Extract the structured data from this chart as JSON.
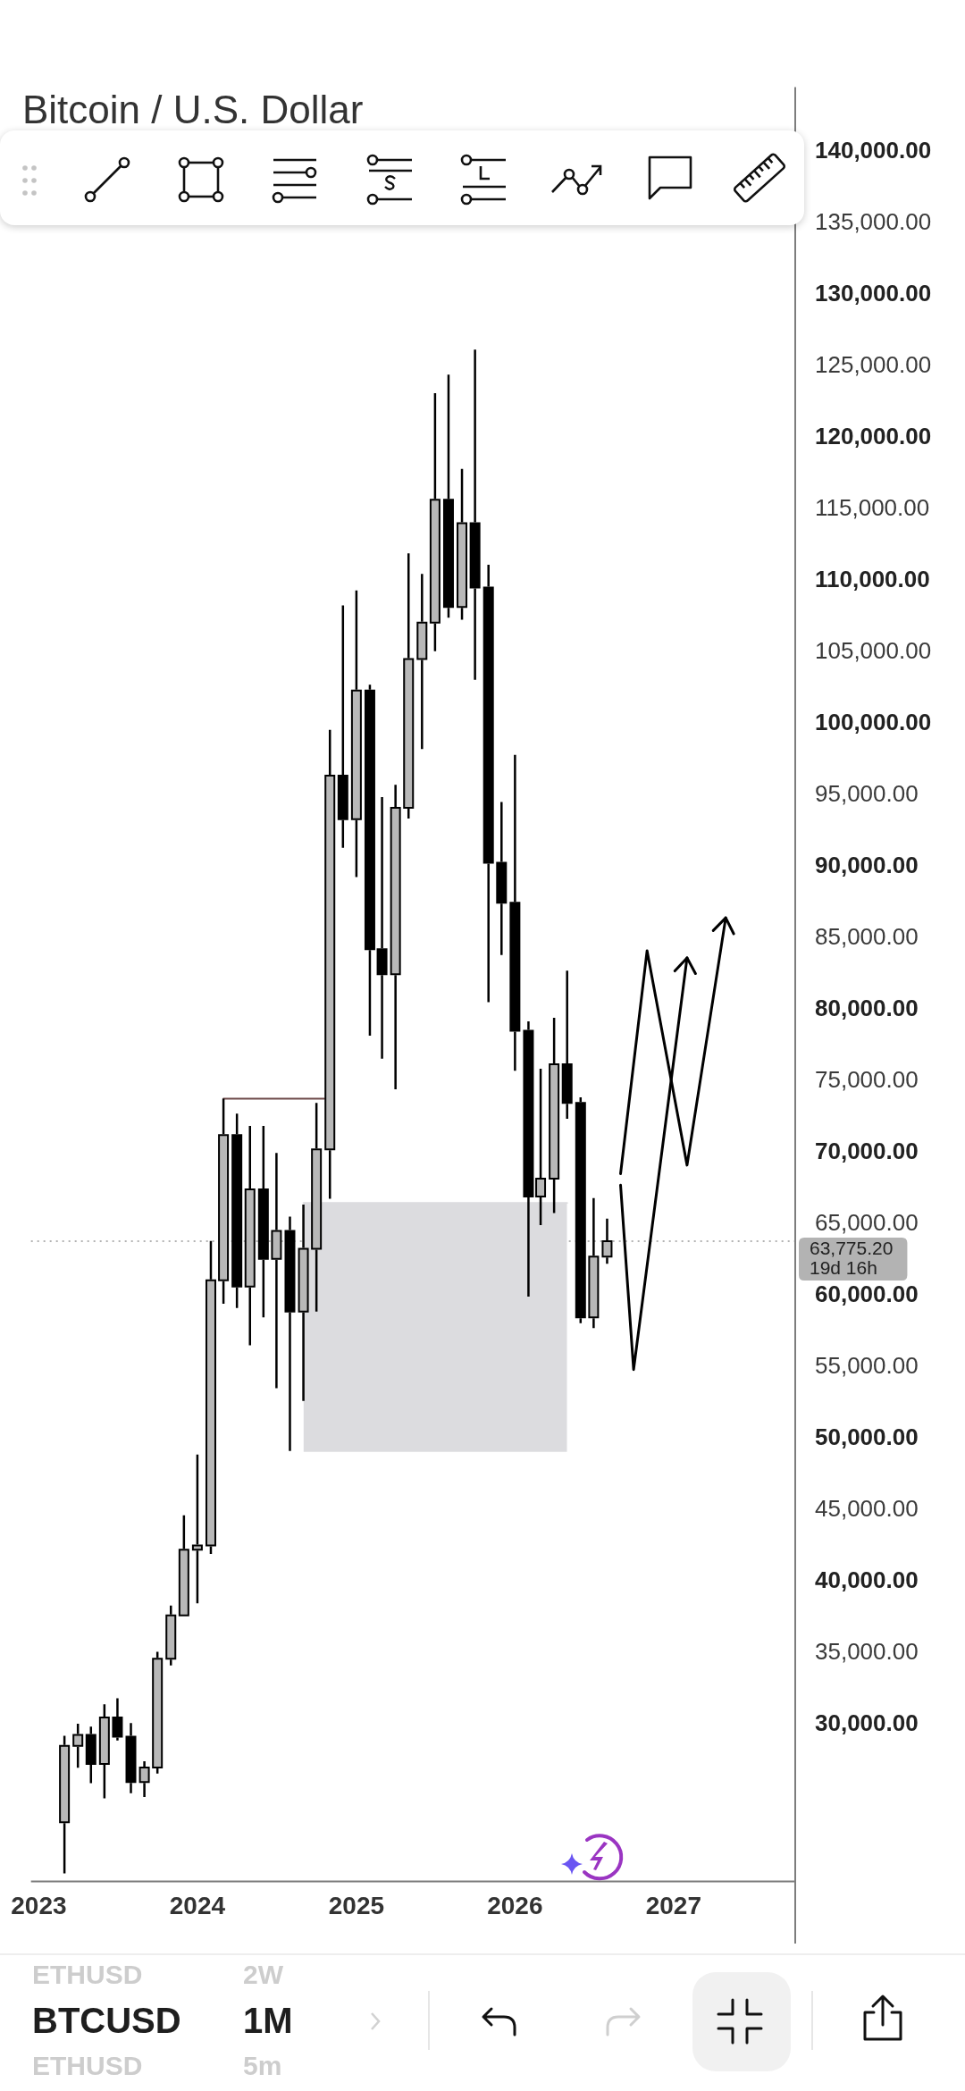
{
  "chart_data": {
    "type": "candlestick",
    "title": "Bitcoin / U.S. Dollar",
    "x": [
      "2023-03",
      "2023-04",
      "2023-05",
      "2023-06",
      "2023-07",
      "2023-08",
      "2023-09",
      "2023-10",
      "2023-11",
      "2023-12",
      "2024-01",
      "2024-02",
      "2024-03",
      "2024-04",
      "2024-05",
      "2024-06",
      "2024-07",
      "2024-08",
      "2024-09",
      "2024-10",
      "2024-11",
      "2024-12",
      "2025-01",
      "2025-02",
      "2025-03",
      "2025-04",
      "2025-05",
      "2025-06",
      "2025-07",
      "2025-08",
      "2025-09",
      "2025-10",
      "2025-11",
      "2025-12",
      "2026-01",
      "2026-02",
      "2026-03",
      "2026-04",
      "2026-05",
      "2026-06",
      "2026-07",
      "2026-08"
    ],
    "ohlc": [
      [
        23140,
        29190,
        19550,
        28480
      ],
      [
        28480,
        30020,
        26940,
        29250
      ],
      [
        29250,
        29820,
        25870,
        27220
      ],
      [
        27220,
        31390,
        24800,
        30470
      ],
      [
        30470,
        31800,
        28860,
        29120
      ],
      [
        29120,
        30080,
        25160,
        25940
      ],
      [
        25940,
        27400,
        24900,
        26970
      ],
      [
        26970,
        35060,
        26540,
        34570
      ],
      [
        34570,
        38300,
        34100,
        37600
      ],
      [
        37600,
        44600,
        37550,
        42200
      ],
      [
        42200,
        48850,
        38450,
        42500
      ],
      [
        42500,
        63800,
        41900,
        61050
      ],
      [
        61050,
        73750,
        59400,
        71200
      ],
      [
        71200,
        72700,
        59100,
        60600
      ],
      [
        60600,
        71850,
        56500,
        67400
      ],
      [
        67400,
        71850,
        58450,
        62550
      ],
      [
        62550,
        69950,
        53500,
        64500
      ],
      [
        64500,
        65500,
        49100,
        58850
      ],
      [
        58850,
        66350,
        52600,
        63250
      ],
      [
        63250,
        73450,
        58850,
        70200
      ],
      [
        70200,
        99550,
        66750,
        96350
      ],
      [
        96350,
        108250,
        91300,
        93300
      ],
      [
        93300,
        109300,
        89250,
        102300
      ],
      [
        102300,
        102700,
        78150,
        84200
      ],
      [
        84200,
        94850,
        76550,
        82450
      ],
      [
        82450,
        95700,
        74400,
        94100
      ],
      [
        94100,
        111900,
        93350,
        104500
      ],
      [
        104500,
        110450,
        98200,
        107050
      ],
      [
        107050,
        123100,
        105050,
        115650
      ],
      [
        115650,
        124400,
        107400,
        108150
      ],
      [
        108150,
        117800,
        107250,
        114000
      ],
      [
        114000,
        126150,
        103050,
        109500
      ],
      [
        109500,
        111100,
        80500,
        90250
      ],
      [
        90250,
        94500,
        83800,
        87450
      ],
      [
        87450,
        97800,
        75700,
        78500
      ],
      [
        78500,
        79150,
        59900,
        66900
      ],
      [
        66900,
        75850,
        64900,
        68150
      ],
      [
        68150,
        79400,
        65750,
        76150
      ],
      [
        76150,
        82700,
        72350,
        73450
      ],
      [
        73450,
        73850,
        58050,
        58450
      ],
      [
        58450,
        66800,
        57700,
        62700
      ],
      [
        62700,
        65350,
        62200,
        63775
      ]
    ],
    "colors": [
      "#b8b8b8",
      "#b8b8b8",
      "#000000",
      "#b8b8b8",
      "#000000",
      "#000000",
      "#b8b8b8",
      "#b8b8b8",
      "#b8b8b8",
      "#b8b8b8",
      "#b8b8b8",
      "#b8b8b8",
      "#b8b8b8",
      "#000000",
      "#b8b8b8",
      "#000000",
      "#b8b8b8",
      "#000000",
      "#b8b8b8",
      "#b8b8b8",
      "#b8b8b8",
      "#000000",
      "#b8b8b8",
      "#000000",
      "#000000",
      "#b8b8b8",
      "#b8b8b8",
      "#b8b8b8",
      "#b8b8b8",
      "#000000",
      "#b8b8b8",
      "#000000",
      "#000000",
      "#000000",
      "#000000",
      "#000000",
      "#b8b8b8",
      "#b8b8b8",
      "#000000",
      "#000000",
      "#b8b8b8",
      "#b8b8b8"
    ],
    "series": [
      {
        "type": "line",
        "x": [
          "2024-09",
          "2026-05"
        ],
        "values": [
          66450,
          66450
        ],
        "lower": [
          49050,
          49050
        ],
        "upper": [
          66450,
          66450
        ],
        "color": "#dcdcdf"
      },
      {
        "type": "step",
        "x": [
          "2024-03",
          "2024-10-19"
        ],
        "values": [
          73750,
          73750
        ],
        "color": "#6e4a4a"
      },
      {
        "type": "line",
        "x": [
          "2026-09",
          "2026-11",
          "2027-02",
          "2027-05"
        ],
        "values": [
          68500,
          84100,
          69100,
          86400
        ],
        "color": "#000000"
      },
      {
        "type": "line",
        "x": [
          "2026-09",
          "2026-10",
          "2027-02"
        ],
        "values": [
          67700,
          54800,
          83600
        ],
        "color": "#000000"
      }
    ],
    "xlim": [
      "2022-12-14",
      "2027-10-08"
    ],
    "xticks": [
      "2023",
      "2024",
      "2025",
      "2026",
      "2027"
    ],
    "ylim": [
      19000,
      144500
    ],
    "yticks": [
      {
        "value": 30000,
        "label": "30,000.00"
      },
      {
        "value": 35000,
        "label": "35,000.00"
      },
      {
        "value": 40000,
        "label": "40,000.00"
      },
      {
        "value": 45000,
        "label": "45,000.00"
      },
      {
        "value": 50000,
        "label": "50,000.00"
      },
      {
        "value": 55000,
        "label": "55,000.00"
      },
      {
        "value": 60000,
        "label": "60,000.00"
      },
      {
        "value": 65000,
        "label": "65,000.00"
      },
      {
        "value": 70000,
        "label": "70,000.00"
      },
      {
        "value": 75000,
        "label": "75,000.00"
      },
      {
        "value": 80000,
        "label": "80,000.00"
      },
      {
        "value": 85000,
        "label": "85,000.00"
      },
      {
        "value": 90000,
        "label": "90,000.00"
      },
      {
        "value": 95000,
        "label": "95,000.00"
      },
      {
        "value": 100000,
        "label": "100,000.00"
      },
      {
        "value": 105000,
        "label": "105,000.00"
      },
      {
        "value": 110000,
        "label": "110,000.00"
      },
      {
        "value": 115000,
        "label": "115,000.00"
      },
      {
        "value": 120000,
        "label": "120,000.00"
      },
      {
        "value": 125000,
        "label": "125,000.00"
      },
      {
        "value": 130000,
        "label": "130,000.00"
      },
      {
        "value": 135000,
        "label": "135,000.00"
      },
      {
        "value": 140000,
        "label": "140,000.00"
      }
    ],
    "ref_lines": [
      {
        "axis": "y",
        "value": 63775.2,
        "label": "63,775.20",
        "color": "#b3b3b3",
        "line_style": "dotted"
      }
    ],
    "annotations": [
      "19d 16h",
      "ETHUSD",
      "2W",
      "BTCUSD",
      "1M",
      "ETHUSD",
      "5m"
    ]
  }
}
